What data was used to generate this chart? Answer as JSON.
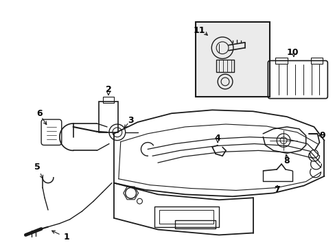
{
  "background_color": "#ffffff",
  "line_color": "#1a1a1a",
  "text_color": "#000000",
  "figsize": [
    4.89,
    3.6
  ],
  "dpi": 100
}
